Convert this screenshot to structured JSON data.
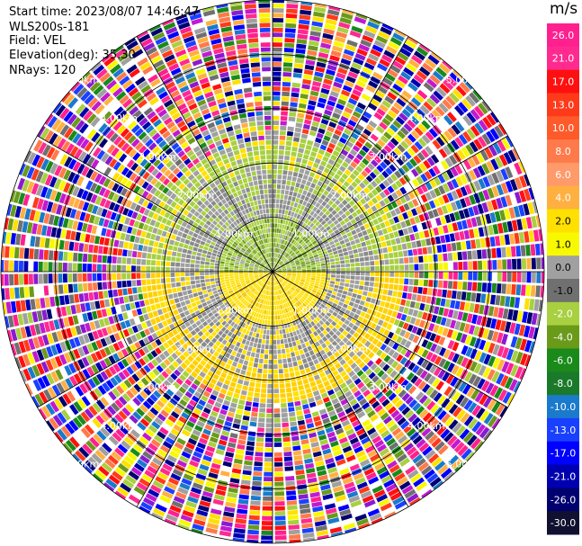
{
  "info": {
    "start_time": "Start time: 2023/08/07 14:46:47",
    "instrument": "WLS200s-181",
    "field": "Field: VEL",
    "elevation": "Elevation(deg): 35.30",
    "nrays": "NRays: 120"
  },
  "colorbar": {
    "title": "m/s",
    "ticks": [
      "26.0",
      "21.0",
      "17.0",
      "13.0",
      "10.0",
      "8.0",
      "6.0",
      "4.0",
      "2.0",
      "1.0",
      "0.0",
      "-1.0",
      "-2.0",
      "-4.0",
      "-6.0",
      "-8.0",
      "-10.0",
      "-13.0",
      "-17.0",
      "-21.0",
      "-26.0",
      "-30.0"
    ],
    "colors": [
      "#ff1f8f",
      "#ff2a8f",
      "#ff1010",
      "#ff3a1a",
      "#ff5a2a",
      "#ff7a4a",
      "#ff9a6a",
      "#ffb040",
      "#ffe000",
      "#f8f800",
      "#a0a0a0",
      "#707070",
      "#a8d040",
      "#6a9a1a",
      "#1a8a1a",
      "#1a7a2a",
      "#1a7acc",
      "#1a40ff",
      "#0000ff",
      "#0000b0",
      "#000070",
      "#101030"
    ]
  },
  "chart_data": {
    "type": "heatmap",
    "projection": "polar PPI",
    "field": "VEL",
    "units": "m/s",
    "range_ring_labels": [
      "1.00km",
      "2.00km",
      "3.00km",
      "4.00km",
      "5.00km"
    ],
    "range_rings_km": [
      1,
      2,
      3,
      4,
      5
    ],
    "max_range_km": 5.0,
    "nrays": 120,
    "elevation_deg": 35.3,
    "zones": [
      {
        "from_km": 0.0,
        "to_km": 0.95,
        "dominant": "green (-2.0 to -1.0) north, yellow (1.0 to 2.0) south"
      },
      {
        "from_km": 0.95,
        "to_km": 1.9,
        "dominant": "gray (~0.0) mixed with green"
      },
      {
        "from_km": 1.9,
        "to_km": 2.4,
        "dominant": "green north, yellow south"
      },
      {
        "from_km": 2.4,
        "to_km": 5.0,
        "dominant": "noisy multicolor"
      }
    ]
  }
}
